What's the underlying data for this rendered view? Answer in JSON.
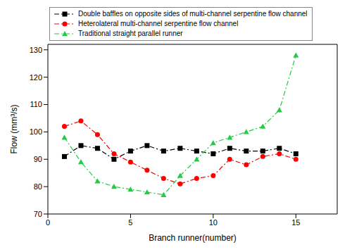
{
  "chart_data": {
    "type": "line",
    "x_label": "Branch runner(number)",
    "y_label": "Flow (mm³/s)",
    "x": [
      1,
      2,
      3,
      4,
      5,
      6,
      7,
      8,
      9,
      10,
      11,
      12,
      13,
      14,
      15
    ],
    "xlim": [
      0,
      17.5
    ],
    "xticks": [
      0,
      5,
      10,
      15
    ],
    "ylim": [
      70,
      132
    ],
    "yticks": [
      70,
      80,
      90,
      100,
      110,
      120,
      130
    ],
    "grid": false,
    "legend": "upper left",
    "series": [
      {
        "name": "Double baffles on opposite sides of multi-channel serpentine flow channel",
        "color": "#000000",
        "marker": "square",
        "line_style": "dashdot",
        "values": [
          91,
          95,
          94,
          90,
          93,
          95,
          93,
          94,
          93,
          92,
          94,
          93,
          93,
          94,
          92
        ]
      },
      {
        "name": "Heterolateral multi-channel serpentine flow channel",
        "color": "#ff0000",
        "marker": "circle",
        "line_style": "dashdot",
        "values": [
          102,
          104,
          99,
          92,
          89,
          86,
          83,
          81,
          83,
          84,
          90,
          88,
          91,
          92,
          90
        ]
      },
      {
        "name": "Traditional straight parallel runner",
        "color": "#22cc44",
        "marker": "triangle",
        "line_style": "dashdot",
        "values": [
          98,
          89,
          82,
          80,
          79,
          78,
          77,
          84,
          90,
          96,
          98,
          100,
          102,
          108,
          128
        ]
      }
    ]
  }
}
